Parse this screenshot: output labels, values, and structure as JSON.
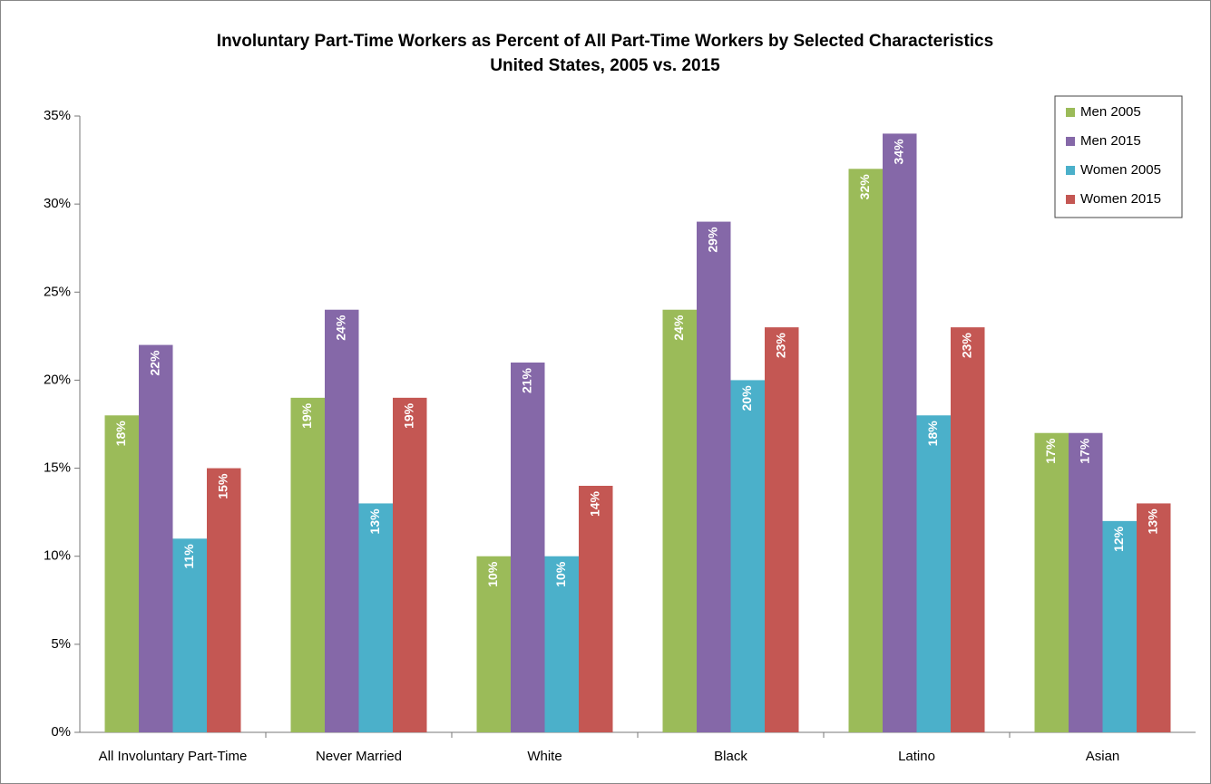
{
  "chart_data": {
    "type": "bar",
    "title": "Involuntary Part-Time Workers as Percent of All Part-Time Workers by Selected Characteristics",
    "subtitle": "United States, 2005 vs. 2015",
    "categories": [
      "All Involuntary Part-Time",
      "Never Married",
      "White",
      "Black",
      "Latino",
      "Asian"
    ],
    "series": [
      {
        "name": "Men 2005",
        "color": "#9bbb59",
        "values": [
          18,
          19,
          10,
          24,
          32,
          17
        ],
        "value_labels": [
          "18%",
          "19%",
          "10%",
          "24%",
          "32%",
          "17%"
        ]
      },
      {
        "name": "Men 2015",
        "color": "#8568a8",
        "values": [
          22,
          24,
          21,
          29,
          34,
          17
        ],
        "value_labels": [
          "22%",
          "24%",
          "21%",
          "29%",
          "34%",
          "17%"
        ]
      },
      {
        "name": "Women 2005",
        "color": "#4bb0ca",
        "values": [
          11,
          13,
          10,
          20,
          18,
          12
        ],
        "value_labels": [
          "11%",
          "13%",
          "10%",
          "20%",
          "18%",
          "12%"
        ]
      },
      {
        "name": "Women 2015",
        "color": "#c45753",
        "values": [
          15,
          19,
          14,
          23,
          23,
          13
        ],
        "value_labels": [
          "15%",
          "19%",
          "14%",
          "23%",
          "23%",
          "13%"
        ]
      }
    ],
    "ylim": [
      0,
      35
    ],
    "yticks": [
      {
        "value": 0,
        "label": "0%"
      },
      {
        "value": 5,
        "label": "5%"
      },
      {
        "value": 10,
        "label": "10%"
      },
      {
        "value": 15,
        "label": "15%"
      },
      {
        "value": 20,
        "label": "20%"
      },
      {
        "value": 25,
        "label": "25%"
      },
      {
        "value": 30,
        "label": "30%"
      },
      {
        "value": 35,
        "label": "35%"
      }
    ],
    "legend": "top-right"
  }
}
